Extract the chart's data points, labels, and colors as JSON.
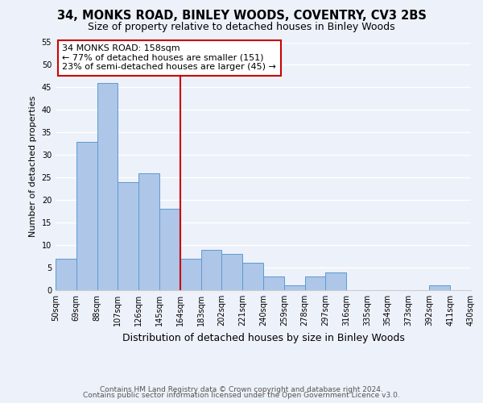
{
  "title": "34, MONKS ROAD, BINLEY WOODS, COVENTRY, CV3 2BS",
  "subtitle": "Size of property relative to detached houses in Binley Woods",
  "xlabel": "Distribution of detached houses by size in Binley Woods",
  "ylabel": "Number of detached properties",
  "bin_edges": [
    50,
    69,
    88,
    107,
    126,
    145,
    164,
    183,
    202,
    221,
    240,
    259,
    278,
    297,
    316,
    335,
    354,
    373,
    392,
    411,
    430
  ],
  "counts": [
    7,
    33,
    46,
    24,
    26,
    18,
    7,
    9,
    8,
    6,
    3,
    1,
    3,
    4,
    0,
    0,
    0,
    0,
    1,
    0
  ],
  "bar_color": "#aec6e8",
  "bar_edgecolor": "#5b9bd5",
  "reference_line_x": 164,
  "reference_line_color": "#cc0000",
  "annotation_text": "34 MONKS ROAD: 158sqm\n← 77% of detached houses are smaller (151)\n23% of semi-detached houses are larger (45) →",
  "annotation_box_edgecolor": "#cc0000",
  "annotation_box_facecolor": "white",
  "ylim": [
    0,
    55
  ],
  "yticks": [
    0,
    5,
    10,
    15,
    20,
    25,
    30,
    35,
    40,
    45,
    50,
    55
  ],
  "tick_labels": [
    "50sqm",
    "69sqm",
    "88sqm",
    "107sqm",
    "126sqm",
    "145sqm",
    "164sqm",
    "183sqm",
    "202sqm",
    "221sqm",
    "240sqm",
    "259sqm",
    "278sqm",
    "297sqm",
    "316sqm",
    "335sqm",
    "354sqm",
    "373sqm",
    "392sqm",
    "411sqm",
    "430sqm"
  ],
  "footer_line1": "Contains HM Land Registry data © Crown copyright and database right 2024.",
  "footer_line2": "Contains public sector information licensed under the Open Government Licence v3.0.",
  "background_color": "#edf1f9",
  "grid_color": "white",
  "title_fontsize": 10.5,
  "subtitle_fontsize": 9,
  "xlabel_fontsize": 9,
  "ylabel_fontsize": 8,
  "annotation_fontsize": 8,
  "footer_fontsize": 6.5,
  "tick_fontsize": 7
}
